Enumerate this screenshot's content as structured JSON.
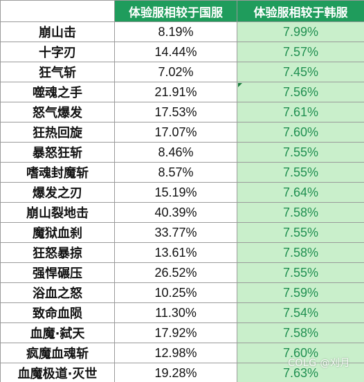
{
  "table": {
    "headers": [
      "",
      "体验服相较于国服",
      "体验服相较于韩服"
    ],
    "rows": [
      {
        "skill": "崩山击",
        "vs_cn": "8.19%",
        "vs_kr": "7.99%"
      },
      {
        "skill": "十字刃",
        "vs_cn": "14.44%",
        "vs_kr": "7.57%"
      },
      {
        "skill": "狂气斩",
        "vs_cn": "7.02%",
        "vs_kr": "7.45%"
      },
      {
        "skill": "噬魂之手",
        "vs_cn": "21.91%",
        "vs_kr": "7.56%"
      },
      {
        "skill": "怒气爆发",
        "vs_cn": "17.53%",
        "vs_kr": "7.61%"
      },
      {
        "skill": "狂热回旋",
        "vs_cn": "17.07%",
        "vs_kr": "7.60%"
      },
      {
        "skill": "暴怒狂斩",
        "vs_cn": "8.46%",
        "vs_kr": "7.55%"
      },
      {
        "skill": "嗜魂封魔斩",
        "vs_cn": "8.57%",
        "vs_kr": "7.55%"
      },
      {
        "skill": "爆发之刃",
        "vs_cn": "15.19%",
        "vs_kr": "7.64%"
      },
      {
        "skill": "崩山裂地击",
        "vs_cn": "40.39%",
        "vs_kr": "7.58%"
      },
      {
        "skill": "魔狱血刹",
        "vs_cn": "33.77%",
        "vs_kr": "7.55%"
      },
      {
        "skill": "狂怒暴掠",
        "vs_cn": "13.61%",
        "vs_kr": "7.58%"
      },
      {
        "skill": "强悍碾压",
        "vs_cn": "26.52%",
        "vs_kr": "7.55%"
      },
      {
        "skill": "浴血之怒",
        "vs_cn": "10.25%",
        "vs_kr": "7.59%"
      },
      {
        "skill": "致命血陨",
        "vs_cn": "11.30%",
        "vs_kr": "7.54%"
      },
      {
        "skill": "血魔·弑天",
        "vs_cn": "17.92%",
        "vs_kr": "7.58%"
      },
      {
        "skill": "疯魔血魂斩",
        "vs_cn": "12.98%",
        "vs_kr": "7.60%"
      },
      {
        "skill": "血魔极道·灭世",
        "vs_cn": "19.28%",
        "vs_kr": "7.63%"
      }
    ]
  },
  "watermark": "COLG @刈月",
  "colors": {
    "header_bg": "#1f9c5c",
    "header_text": "#ffffff",
    "kr_cell_bg": "#c9efcb",
    "kr_cell_text": "#1f8f50",
    "grid": "#9a9a9a"
  }
}
